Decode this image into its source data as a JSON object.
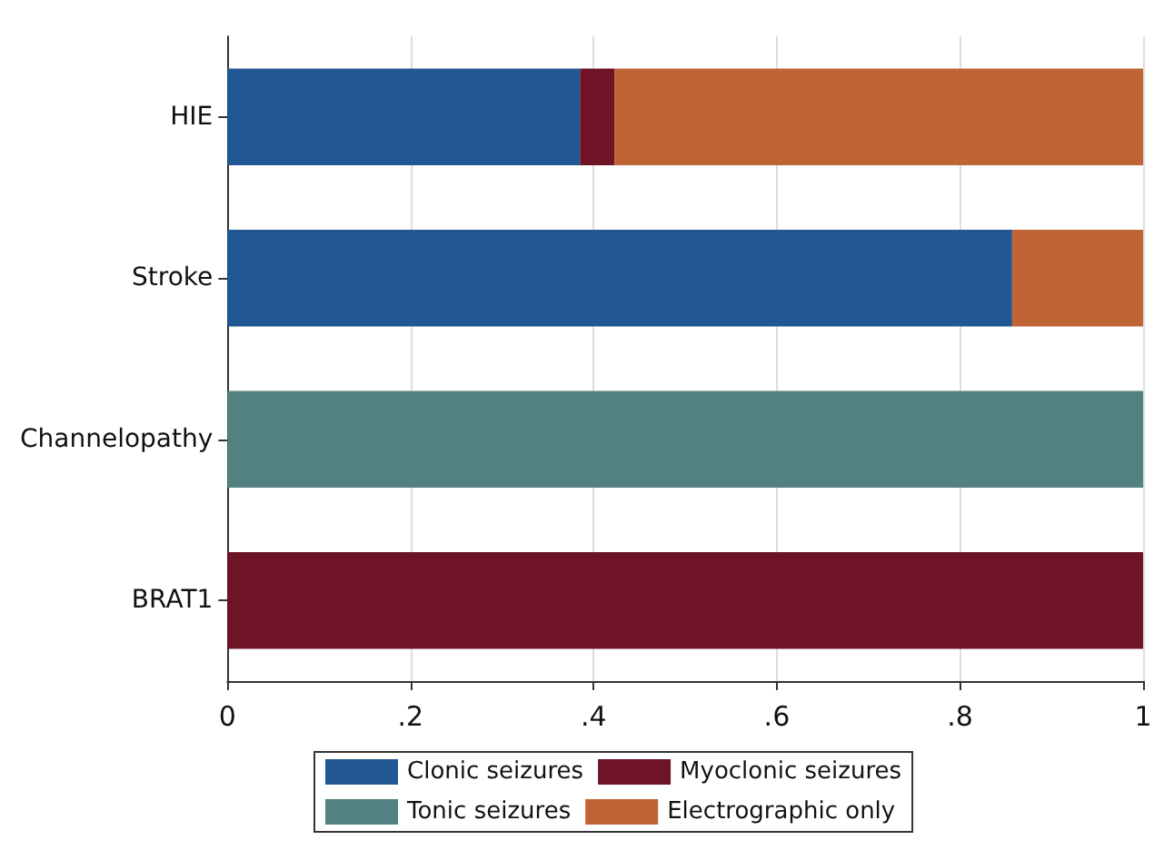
{
  "chart_data": {
    "type": "bar",
    "orientation": "horizontal",
    "stacked": true,
    "categories": [
      "HIE",
      "Stroke",
      "Channelopathy",
      "BRAT1"
    ],
    "series": [
      {
        "name": "Clonic seizures",
        "color": "#215893",
        "values": [
          0.385,
          0.857,
          0,
          0
        ]
      },
      {
        "name": "Myoclonic seizures",
        "color": "#6e1426",
        "values": [
          0.038,
          0,
          0,
          1
        ]
      },
      {
        "name": "Tonic seizures",
        "color": "#538080",
        "values": [
          0,
          0,
          1,
          0
        ]
      },
      {
        "name": "Electrographic only",
        "color": "#bf6434",
        "values": [
          0.577,
          0.143,
          0,
          0
        ]
      }
    ],
    "xlim": [
      0,
      1
    ],
    "xticks": [
      0,
      {
        "value": 0.2,
        "label": ".2"
      },
      {
        "value": 0.4,
        "label": ".4"
      },
      {
        "value": 0.6,
        "label": ".6"
      },
      {
        "value": 0.8,
        "label": ".8"
      },
      1
    ],
    "grid": "x",
    "legend": "bottom"
  }
}
